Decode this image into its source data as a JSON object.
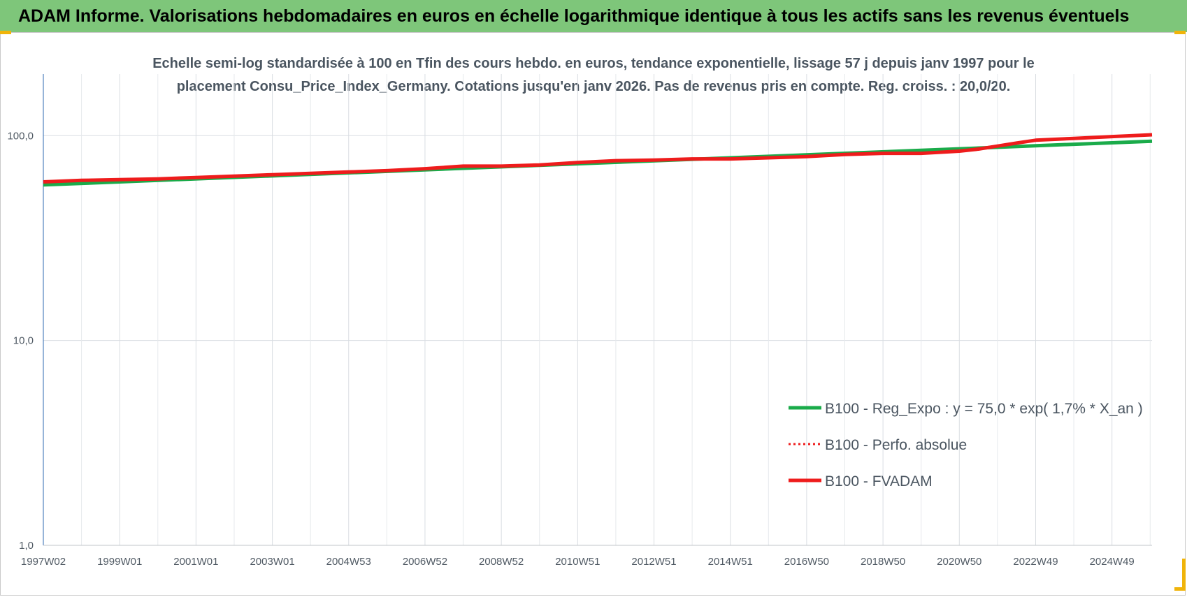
{
  "banner": {
    "title": "ADAM Informe. Valorisations hebdomadaires en euros en échelle logarithmique identique à tous les actifs sans les revenus éventuels",
    "color": "#7ec67a"
  },
  "chart_data": {
    "type": "line",
    "title_line1": "Echelle semi-log standardisée à 100 en Tfin des cours hebdo. en euros, tendance exponentielle, lissage 57 j depuis janv 1997 pour le",
    "title_line2": "placement Consu_Price_Index_Germany. Cotations jusqu'en janv 2026. Pas de revenus pris en compte. Reg. croiss. : 20,0/20.",
    "yscale": "log",
    "ylim": [
      1,
      200
    ],
    "yticks": [
      {
        "value": 1,
        "label": "1,0"
      },
      {
        "value": 10,
        "label": "10,0"
      },
      {
        "value": 100,
        "label": "100,0"
      }
    ],
    "xlim": [
      1997.0,
      2026.05
    ],
    "xticks": [
      {
        "value": 1997.0,
        "label": "1997W02"
      },
      {
        "value": 1999.0,
        "label": "1999W01"
      },
      {
        "value": 2001.0,
        "label": "2001W01"
      },
      {
        "value": 2003.0,
        "label": "2003W01"
      },
      {
        "value": 2005.0,
        "label": "2004W53"
      },
      {
        "value": 2007.0,
        "label": "2006W52"
      },
      {
        "value": 2009.0,
        "label": "2008W52"
      },
      {
        "value": 2011.0,
        "label": "2010W51"
      },
      {
        "value": 2013.0,
        "label": "2012W51"
      },
      {
        "value": 2015.0,
        "label": "2014W51"
      },
      {
        "value": 2017.0,
        "label": "2016W50"
      },
      {
        "value": 2019.0,
        "label": "2018W50"
      },
      {
        "value": 2021.0,
        "label": "2020W50"
      },
      {
        "value": 2023.0,
        "label": "2022W49"
      },
      {
        "value": 2025.0,
        "label": "2024W49"
      }
    ],
    "grid": true,
    "legend_position": "bottom-right",
    "series": [
      {
        "name": "B100 - Reg_Expo : y = 75,0 * exp( 1,7% *  X_an )",
        "color": "#1aab4a",
        "style": "solid",
        "x": [
          1997.0,
          2026.05
        ],
        "y": [
          57.5,
          94.0
        ]
      },
      {
        "name": "B100 - Perfo. absolue",
        "color": "#ee1c1c",
        "style": "dotted",
        "x": [
          1997.0,
          1998.0,
          1999.0,
          2000.0,
          2001.0,
          2002.0,
          2003.0,
          2004.0,
          2005.0,
          2006.0,
          2007.0,
          2008.0,
          2009.0,
          2010.0,
          2011.0,
          2012.0,
          2013.0,
          2014.0,
          2015.0,
          2016.0,
          2017.0,
          2018.0,
          2019.0,
          2020.0,
          2021.0,
          2021.5,
          2022.0,
          2022.5,
          2023.0,
          2023.5,
          2024.0,
          2025.0,
          2026.05
        ],
        "y": [
          59.5,
          60.5,
          61.0,
          61.5,
          62.5,
          63.5,
          64.5,
          65.5,
          66.5,
          67.5,
          69.0,
          71.0,
          71.0,
          72.0,
          74.0,
          75.5,
          76.0,
          77.0,
          77.0,
          78.0,
          79.0,
          81.0,
          82.0,
          82.0,
          84.0,
          86.0,
          89.0,
          92.0,
          95.0,
          96.0,
          97.0,
          99.0,
          101.0
        ]
      },
      {
        "name": "B100 - FVADAM",
        "color": "#ee1c1c",
        "style": "solid",
        "x": [
          1997.0,
          1998.0,
          1999.0,
          2000.0,
          2001.0,
          2002.0,
          2003.0,
          2004.0,
          2005.0,
          2006.0,
          2007.0,
          2008.0,
          2009.0,
          2010.0,
          2011.0,
          2012.0,
          2013.0,
          2014.0,
          2015.0,
          2016.0,
          2017.0,
          2018.0,
          2019.0,
          2020.0,
          2021.0,
          2021.5,
          2022.0,
          2022.5,
          2023.0,
          2023.5,
          2024.0,
          2025.0,
          2026.05
        ],
        "y": [
          59.5,
          60.5,
          61.0,
          61.5,
          62.5,
          63.5,
          64.5,
          65.5,
          66.5,
          67.5,
          69.0,
          71.0,
          71.0,
          72.0,
          74.0,
          75.5,
          76.0,
          77.0,
          77.0,
          78.0,
          79.0,
          81.0,
          82.0,
          82.0,
          84.0,
          86.0,
          89.0,
          92.0,
          95.0,
          96.0,
          97.0,
          99.0,
          101.0
        ]
      }
    ]
  }
}
